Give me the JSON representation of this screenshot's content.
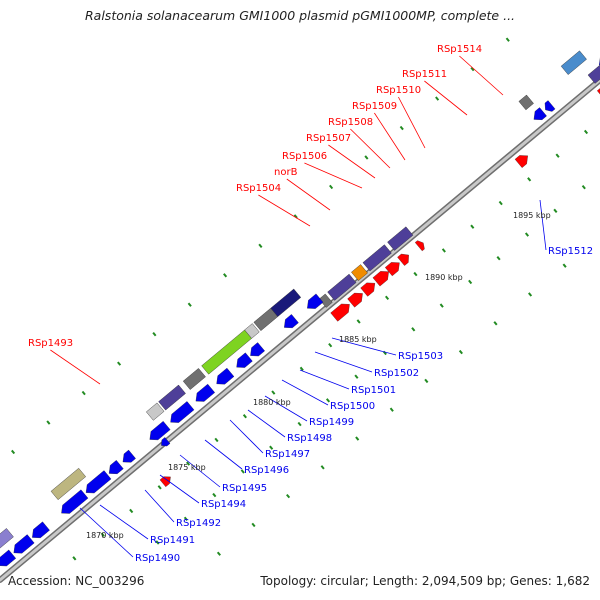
{
  "title": "Ralstonia solanacearum GMI1000 plasmid pGMI1000MP, complete ...",
  "footer": {
    "accession": "Accession: NC_003296",
    "summary": "Topology: circular; Length: 2,094,509 bp; Genes: 1,682"
  },
  "colors": {
    "forward": "#ff0000",
    "reverse": "#0000ee",
    "backbone": "#999999",
    "tick": "#228b22"
  },
  "scale_labels": [
    "1870 kbp",
    "1875 kbp",
    "1880 kbp",
    "1885 kbp",
    "1890 kbp",
    "1895 kbp"
  ],
  "gene_labels_top": [
    "RSp1493",
    "RSp1504",
    "norB",
    "RSp1506",
    "RSp1507",
    "RSp1508",
    "RSp1509",
    "RSp1510",
    "RSp1511",
    "RSp1514"
  ],
  "gene_labels_bottom": [
    "RSp1490",
    "RSp1491",
    "RSp1492",
    "RSp1494",
    "RSp1495",
    "RSp1496",
    "RSp1497",
    "RSp1498",
    "RSp1499",
    "RSp1500",
    "RSp1501",
    "RSp1502",
    "RSp1503",
    "RSp1512"
  ]
}
